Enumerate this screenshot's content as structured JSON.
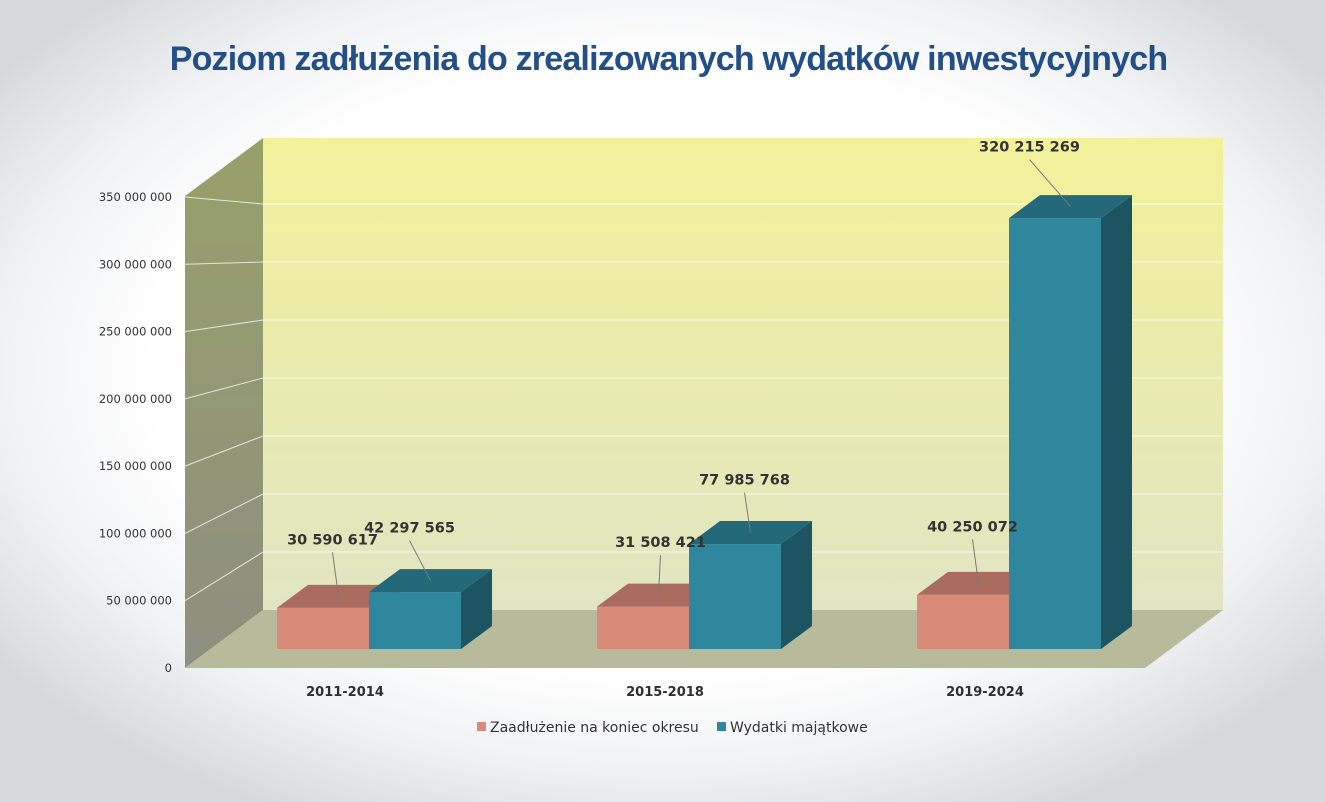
{
  "title": "Poziom zadłużenia do zrealizowanych wydatków inwestycyjnych",
  "chart_data": {
    "type": "bar",
    "subtype": "clustered-3d",
    "title": "Poziom zadłużenia do zrealizowanych wydatków inwestycyjnych",
    "categories": [
      "2011-2014",
      "2015-2018",
      "2019-2024"
    ],
    "series": [
      {
        "name": "Zaadłużenie na koniec okresu",
        "values": [
          30590617,
          31508421,
          40250072
        ],
        "labels": [
          "30 590 617",
          "31 508 421",
          "40 250 072"
        ],
        "color": "#d98b7a"
      },
      {
        "name": "Wydatki majątkowe",
        "values": [
          42297565,
          77985768,
          320215269
        ],
        "labels": [
          "42 297 565",
          "77 985 768",
          "320 215 269"
        ],
        "color": "#2e879c"
      }
    ],
    "y_ticks": [
      "0",
      "50 000 000",
      "100 000 000",
      "150 000 000",
      "200 000 000",
      "250 000 000",
      "300 000 000",
      "350 000 000"
    ],
    "ylim": [
      0,
      350000000
    ],
    "grid": true,
    "legend_position": "bottom",
    "colors": {
      "wall_top": "#f3f19a",
      "wall_bottom": "#e1e5c3",
      "side_wall": "#939c6c",
      "floor": "#b8bb9b"
    }
  }
}
